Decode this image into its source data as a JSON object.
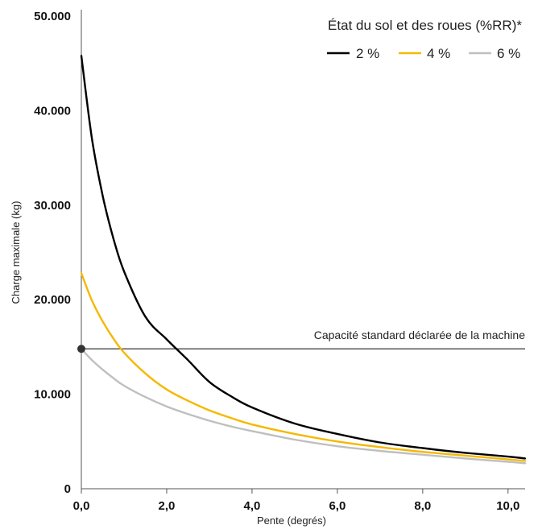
{
  "chart_data": {
    "type": "line",
    "xlabel": "Pente (degrés)",
    "ylabel": "Charge maximale (kg)",
    "xlim": [
      0,
      10.4
    ],
    "ylim": [
      0,
      50000
    ],
    "x_ticks": [
      0,
      2,
      4,
      6,
      8,
      10
    ],
    "x_tick_labels": [
      "0,0",
      "2,0",
      "4,0",
      "6,0",
      "8,0",
      "10,0"
    ],
    "y_ticks": [
      0,
      10000,
      20000,
      30000,
      40000,
      50000
    ],
    "y_tick_labels": [
      "0",
      "10.000",
      "20.000",
      "30.000",
      "40.000",
      "50.000"
    ],
    "grid": false,
    "legend": {
      "title": "État du sol et des roues (%RR)*",
      "placement": "top-right"
    },
    "series": [
      {
        "name": "2 %",
        "color": "#000000",
        "x": [
          0,
          0.25,
          0.5,
          0.75,
          1.0,
          1.5,
          2.0,
          2.5,
          3.0,
          3.5,
          4.0,
          5.0,
          6.0,
          7.0,
          8.0,
          9.0,
          10.0,
          10.4
        ],
        "values": [
          45800,
          37000,
          31000,
          26500,
          23000,
          18200,
          15800,
          13600,
          11300,
          9800,
          8600,
          6900,
          5800,
          4900,
          4300,
          3800,
          3400,
          3200
        ]
      },
      {
        "name": "4 %",
        "color": "#F5B800",
        "x": [
          0,
          0.25,
          0.5,
          0.75,
          1.0,
          1.5,
          2.0,
          2.5,
          3.0,
          3.5,
          4.0,
          5.0,
          6.0,
          7.0,
          8.0,
          9.0,
          10.0,
          10.4
        ],
        "values": [
          22800,
          19900,
          17700,
          15900,
          14400,
          12200,
          10500,
          9300,
          8300,
          7500,
          6800,
          5800,
          5000,
          4400,
          3900,
          3500,
          3100,
          2950
        ]
      },
      {
        "name": "6 %",
        "color": "#BFBFBF",
        "x": [
          0,
          0.25,
          0.5,
          0.75,
          1.0,
          1.5,
          2.0,
          2.5,
          3.0,
          3.5,
          4.0,
          5.0,
          6.0,
          7.0,
          8.0,
          9.0,
          10.0,
          10.4
        ],
        "values": [
          14800,
          13600,
          12600,
          11700,
          10900,
          9700,
          8700,
          7900,
          7200,
          6600,
          6100,
          5200,
          4500,
          4000,
          3600,
          3200,
          2850,
          2700
        ]
      }
    ],
    "reference_line": {
      "y": 14800,
      "label": "Capacité standard déclarée de la machine",
      "color": "#333333"
    },
    "marker": {
      "x": 0,
      "y": 14800,
      "color": "#333333"
    }
  }
}
